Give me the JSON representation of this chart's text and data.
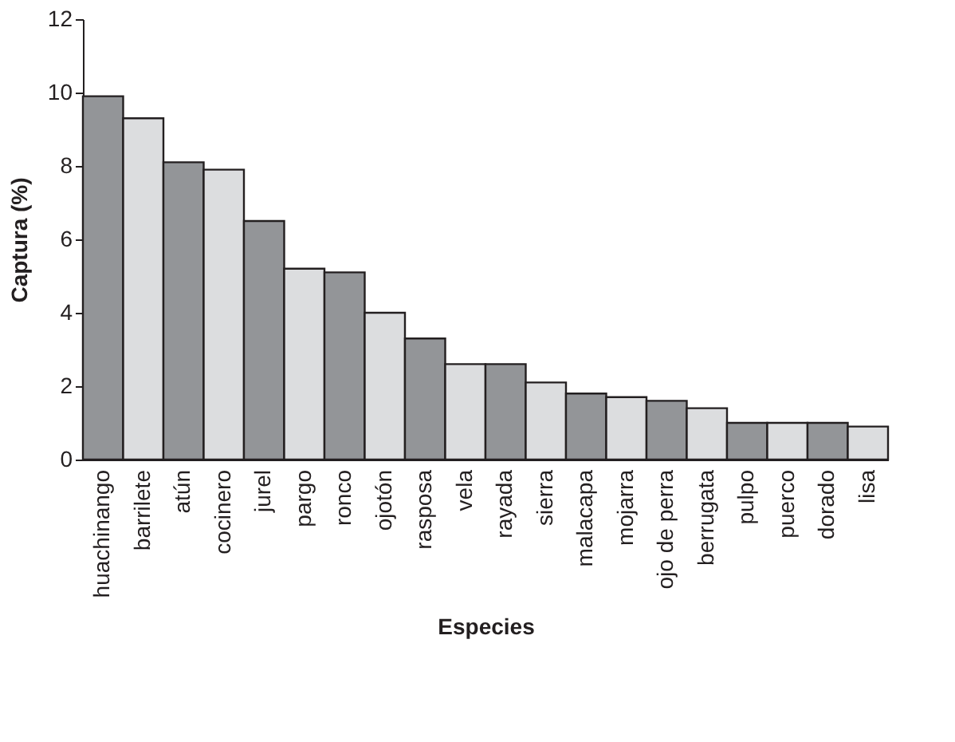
{
  "chart_data": {
    "type": "bar",
    "xlabel": "Especies",
    "ylabel": "Captura (%)",
    "categories": [
      "huachinango",
      "barrilete",
      "atún",
      "cocinero",
      "jurel",
      "pargo",
      "ronco",
      "ojotón",
      "rasposa",
      "vela",
      "rayada",
      "sierra",
      "malacapa",
      "mojarra",
      "ojo de perra",
      "berrugata",
      "pulpo",
      "puerco",
      "dorado",
      "lisa"
    ],
    "values": [
      9.9,
      9.3,
      8.1,
      7.9,
      6.5,
      5.2,
      5.1,
      4.0,
      3.3,
      2.6,
      2.6,
      2.1,
      1.8,
      1.7,
      1.6,
      1.4,
      1.0,
      1.0,
      1.0,
      0.9
    ],
    "colors": [
      "#939598",
      "#dcdddf",
      "#939598",
      "#dcdddf",
      "#939598",
      "#dcdddf",
      "#939598",
      "#dcdddf",
      "#939598",
      "#dcdddf",
      "#939598",
      "#dcdddf",
      "#939598",
      "#dcdddf",
      "#939598",
      "#dcdddf",
      "#939598",
      "#dcdddf",
      "#939598",
      "#dcdddf"
    ],
    "ylim": [
      0,
      12
    ],
    "yticks": [
      0,
      2,
      4,
      6,
      8,
      10,
      12
    ],
    "grid": false
  }
}
